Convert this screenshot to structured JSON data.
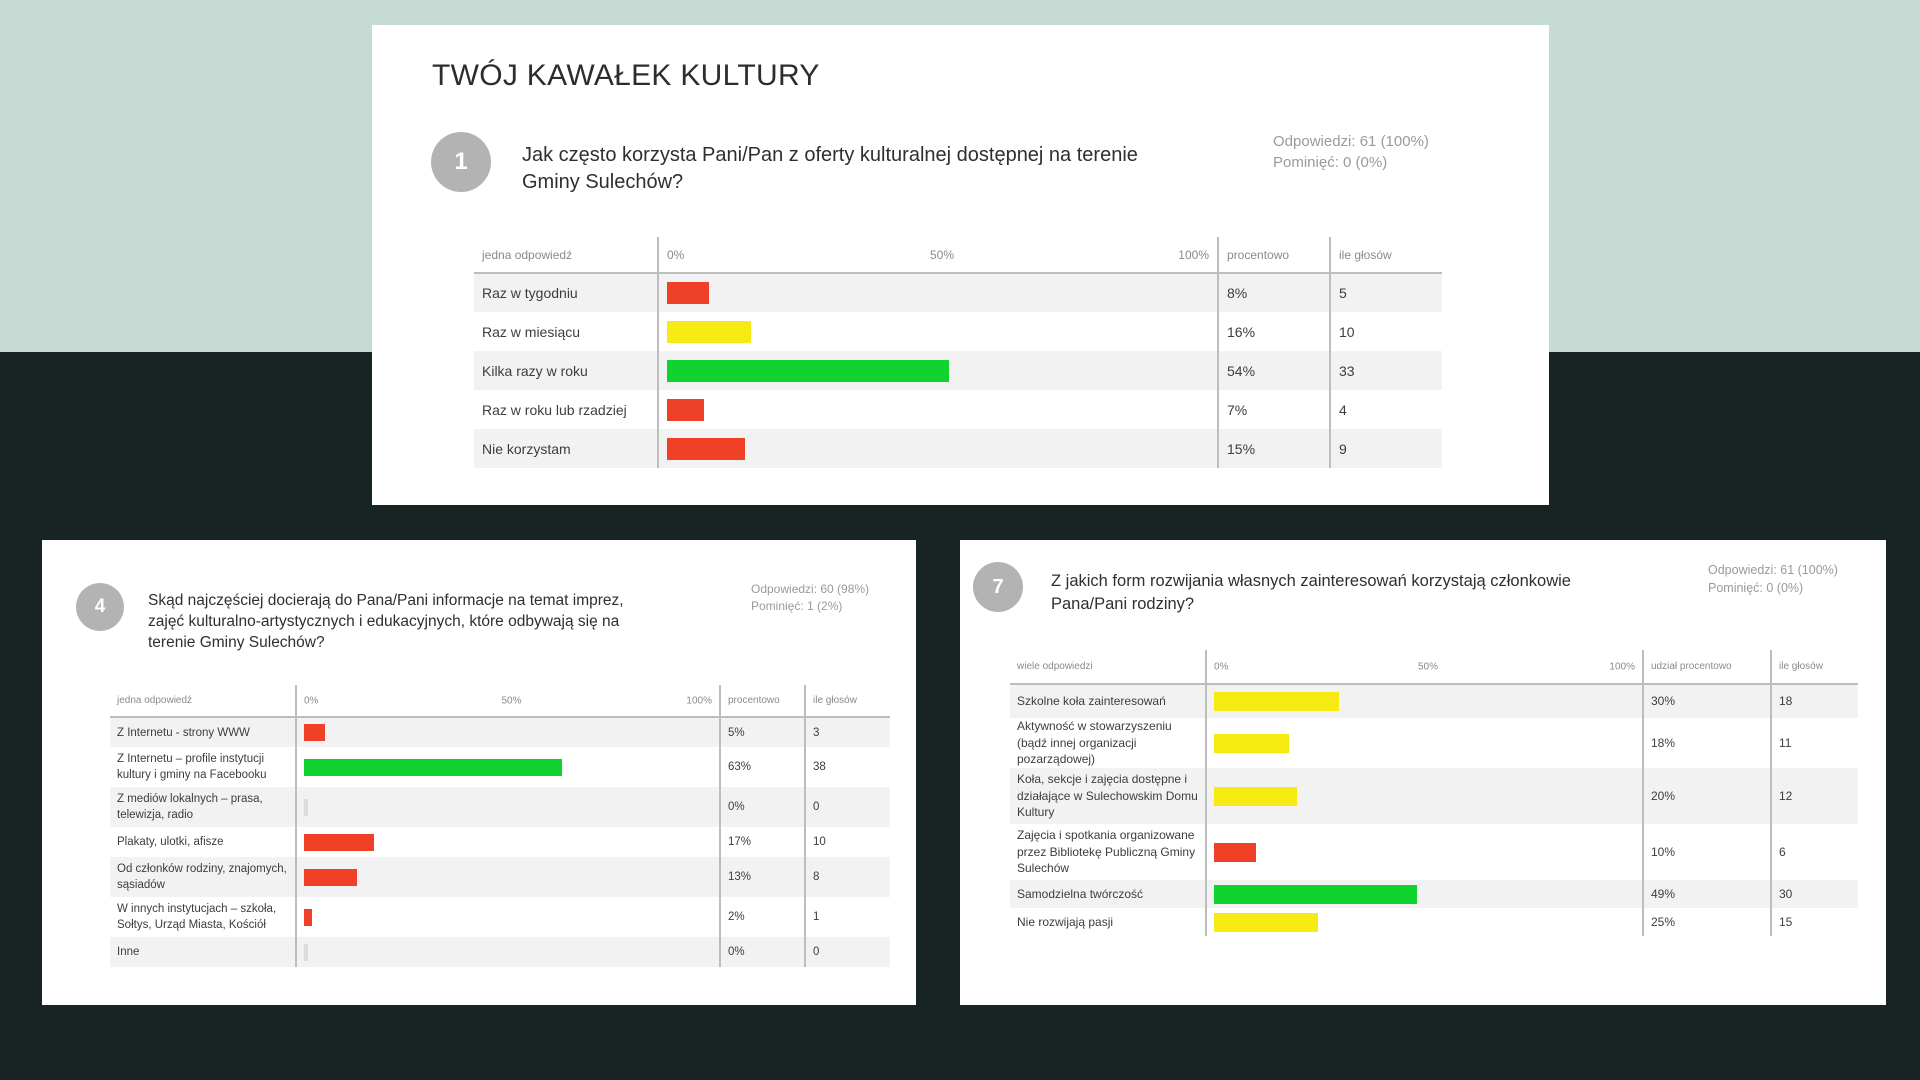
{
  "page_title": "TWÓJ KAWAŁEK KULTURY",
  "colors": {
    "red": "#ee4128",
    "yellow": "#f5ea12",
    "green": "#10d32e",
    "zero": "#dddddd"
  },
  "chart_data": [
    {
      "type": "bar",
      "number": "1",
      "question": "Jak często korzysta Pani/Pan z oferty kulturalnej dostępnej na terenie Gminy Sulechów?",
      "stats": [
        "Odpowiedzi: 61 (100%)",
        "Pominięć: 0 (0%)"
      ],
      "headers": {
        "answer": "jedna odpowiedź",
        "scale": [
          "0%",
          "50%",
          "100%"
        ],
        "percent": "procentowo",
        "votes": "ile głosów"
      },
      "categories": [
        "Raz w tygodniu",
        "Raz w miesiącu",
        "Kilka razy w roku",
        "Raz w roku lub rzadziej",
        "Nie korzystam"
      ],
      "values": [
        8,
        16,
        54,
        7,
        15
      ],
      "percent_labels": [
        "8%",
        "16%",
        "54%",
        "7%",
        "15%"
      ],
      "votes": [
        "5",
        "10",
        "33",
        "4",
        "9"
      ],
      "bar_colors": [
        "red",
        "yellow",
        "green",
        "red",
        "red"
      ],
      "xlim": [
        0,
        100
      ]
    },
    {
      "type": "bar",
      "number": "4",
      "question": "Skąd najczęściej docierają do Pana/Pani informacje na temat imprez, zajęć kulturalno-artystycznych i edukacyjnych, które odbywają się na terenie Gminy Sulechów?",
      "stats": [
        "Odpowiedzi: 60 (98%)",
        "Pominięć: 1 (2%)"
      ],
      "headers": {
        "answer": "jedna odpowiedź",
        "scale": [
          "0%",
          "50%",
          "100%"
        ],
        "percent": "procentowo",
        "votes": "ile głosów"
      },
      "categories": [
        "Z Internetu - strony WWW",
        "Z Internetu – profile instytucji kultury i gminy na Facebooku",
        "Z mediów lokalnych – prasa, telewizja, radio",
        "Plakaty, ulotki, afisze",
        "Od członków rodziny, znajomych, sąsiadów",
        "W innych instytucjach – szkoła, Sołtys, Urząd Miasta, Kościół",
        "Inne"
      ],
      "values": [
        5,
        63,
        0,
        17,
        13,
        2,
        0
      ],
      "percent_labels": [
        "5%",
        "63%",
        "0%",
        "17%",
        "13%",
        "2%",
        "0%"
      ],
      "votes": [
        "3",
        "38",
        "0",
        "10",
        "8",
        "1",
        "0"
      ],
      "bar_colors": [
        "red",
        "green",
        "zero",
        "red",
        "red",
        "red",
        "zero"
      ],
      "xlim": [
        0,
        100
      ]
    },
    {
      "type": "bar",
      "number": "7",
      "question": "Z jakich form rozwijania własnych zainteresowań korzystają członkowie Pana/Pani rodziny?",
      "stats": [
        "Odpowiedzi: 61 (100%)",
        "Pominięć: 0 (0%)"
      ],
      "headers": {
        "answer": "wiele odpowiedzi",
        "scale": [
          "0%",
          "50%",
          "100%"
        ],
        "percent": "udział procentowo",
        "votes": "ile głosów"
      },
      "categories": [
        "Szkolne koła zainteresowań",
        "Aktywność w stowarzyszeniu (bądź innej organizacji pozarządowej)",
        "Koła, sekcje i zajęcia dostępne i działające w Sulechowskim Domu Kultury",
        "Zajęcia i spotkania organizowane przez Bibliotekę Publiczną Gminy Sulechów",
        "Samodzielna twórczość",
        "Nie rozwijają pasji"
      ],
      "values": [
        30,
        18,
        20,
        10,
        49,
        25
      ],
      "percent_labels": [
        "30%",
        "18%",
        "20%",
        "10%",
        "49%",
        "25%"
      ],
      "votes": [
        "18",
        "11",
        "12",
        "6",
        "30",
        "15"
      ],
      "bar_colors": [
        "yellow",
        "yellow",
        "yellow",
        "red",
        "green",
        "yellow"
      ],
      "xlim": [
        0,
        100
      ]
    }
  ]
}
